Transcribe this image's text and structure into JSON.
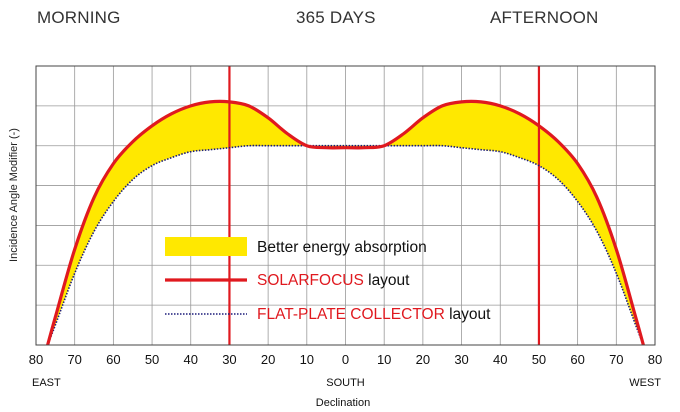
{
  "header": {
    "left": "MORNING",
    "center": "365 DAYS",
    "right": "AFTERNOON"
  },
  "colors": {
    "fill": "#ffe800",
    "solarfocus": "#e0191f",
    "flatplate": "#1b1b7a",
    "grid": "#999999",
    "text": "#111111",
    "legend_red": "#e0191f"
  },
  "chart_data": {
    "type": "line",
    "title": "",
    "ylabel": "Incidence Angle Modifier (-)",
    "xlabel": "Declination",
    "x_ticks": [
      {
        "label": "80",
        "value": -80
      },
      {
        "label": "70",
        "value": -70
      },
      {
        "label": "60",
        "value": -60
      },
      {
        "label": "50",
        "value": -50
      },
      {
        "label": "40",
        "value": -40
      },
      {
        "label": "30",
        "value": -30
      },
      {
        "label": "20",
        "value": -20
      },
      {
        "label": "10",
        "value": -10
      },
      {
        "label": "0",
        "value": 0
      },
      {
        "label": "10",
        "value": 10
      },
      {
        "label": "20",
        "value": 20
      },
      {
        "label": "30",
        "value": 30
      },
      {
        "label": "40",
        "value": 40
      },
      {
        "label": "50",
        "value": 50
      },
      {
        "label": "60",
        "value": 60
      },
      {
        "label": "70",
        "value": 70
      },
      {
        "label": "80",
        "value": 80
      }
    ],
    "x_direction_labels": [
      {
        "label": "EAST",
        "value": -80
      },
      {
        "label": "SOUTH",
        "value": 0
      },
      {
        "label": "WEST",
        "value": 80
      }
    ],
    "xlim": [
      -80,
      80
    ],
    "ylim": [
      0,
      1.4
    ],
    "y_tick_labels_shown": false,
    "grid": true,
    "vertical_markers": [
      -30,
      50
    ],
    "series": [
      {
        "name": "SOLARFOCUS layout",
        "style": "solid",
        "x": [
          -77,
          -75,
          -70,
          -65,
          -60,
          -55,
          -50,
          -45,
          -40,
          -35,
          -30,
          -25,
          -20,
          -15,
          -10,
          -5,
          0,
          5,
          10,
          15,
          20,
          25,
          30,
          35,
          40,
          45,
          50,
          55,
          60,
          65,
          70,
          75,
          77
        ],
        "y": [
          0.0,
          0.14,
          0.48,
          0.74,
          0.91,
          1.02,
          1.1,
          1.16,
          1.2,
          1.22,
          1.22,
          1.2,
          1.14,
          1.06,
          1.0,
          0.99,
          0.99,
          0.99,
          1.0,
          1.06,
          1.14,
          1.2,
          1.22,
          1.22,
          1.2,
          1.16,
          1.1,
          1.02,
          0.91,
          0.74,
          0.48,
          0.14,
          0.0
        ]
      },
      {
        "name": "FLAT-PLATE COLLECTOR layout",
        "style": "dotted",
        "x": [
          -77,
          -75,
          -70,
          -65,
          -60,
          -55,
          -50,
          -45,
          -40,
          -35,
          -30,
          -25,
          -20,
          -15,
          -10,
          -5,
          0,
          5,
          10,
          15,
          20,
          25,
          30,
          35,
          40,
          45,
          50,
          55,
          60,
          65,
          70,
          75,
          77
        ],
        "y": [
          0.0,
          0.1,
          0.36,
          0.57,
          0.72,
          0.83,
          0.9,
          0.94,
          0.97,
          0.98,
          0.99,
          1.0,
          1.0,
          1.0,
          1.0,
          1.0,
          1.0,
          1.0,
          1.0,
          1.0,
          1.0,
          1.0,
          0.99,
          0.98,
          0.97,
          0.94,
          0.9,
          0.83,
          0.72,
          0.57,
          0.36,
          0.1,
          0.0
        ]
      }
    ],
    "legend": {
      "placement": "bottom-center",
      "items": [
        {
          "key": "fill",
          "label_red": "",
          "label_black": "Better energy absorption"
        },
        {
          "key": "solarfocus",
          "label_red": "SOLARFOCUS",
          "label_black": " layout"
        },
        {
          "key": "flatplate",
          "label_red": "FLAT-PLATE COLLECTOR",
          "label_black": " layout"
        }
      ]
    }
  }
}
